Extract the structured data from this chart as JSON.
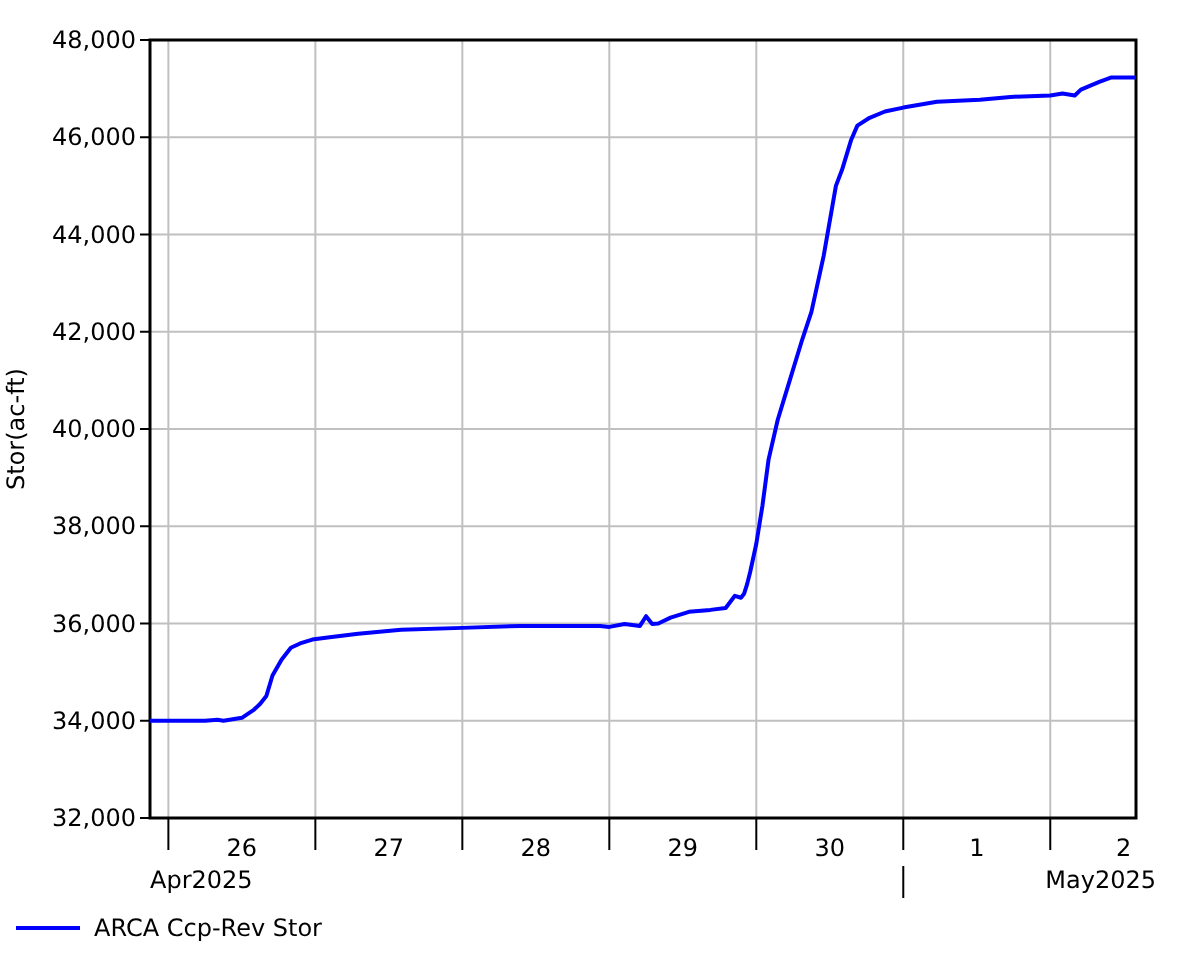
{
  "chart_data": {
    "type": "line",
    "ylabel": "Stor(ac-ft)",
    "legend": "bottom left",
    "grid": true,
    "marker": "none",
    "line_style": "solid",
    "xlim": [
      "2025-04-25T21:00",
      "2025-05-02T14:00"
    ],
    "xticks": [
      {
        "value": "2025-04-26T00:00",
        "label": null
      },
      {
        "value": "2025-04-26T12:00",
        "label": "26"
      },
      {
        "value": "2025-04-27T00:00",
        "label": null
      },
      {
        "value": "2025-04-27T12:00",
        "label": "27"
      },
      {
        "value": "2025-04-28T00:00",
        "label": null
      },
      {
        "value": "2025-04-28T12:00",
        "label": "28"
      },
      {
        "value": "2025-04-29T00:00",
        "label": null
      },
      {
        "value": "2025-04-29T12:00",
        "label": "29"
      },
      {
        "value": "2025-04-30T00:00",
        "label": null
      },
      {
        "value": "2025-04-30T12:00",
        "label": "30"
      },
      {
        "value": "2025-05-01T00:00",
        "label": null
      },
      {
        "value": "2025-05-01T12:00",
        "label": "1"
      },
      {
        "value": "2025-05-02T00:00",
        "label": null
      },
      {
        "value": "2025-05-02T12:00",
        "label": "2"
      }
    ],
    "ylim": [
      32000,
      48000
    ],
    "yticks": [
      {
        "value": 32000,
        "label": "32,000"
      },
      {
        "value": 34000,
        "label": "34,000"
      },
      {
        "value": 36000,
        "label": "36,000"
      },
      {
        "value": 38000,
        "label": "38,000"
      },
      {
        "value": 40000,
        "label": "40,000"
      },
      {
        "value": 42000,
        "label": "42,000"
      },
      {
        "value": 44000,
        "label": "44,000"
      },
      {
        "value": 46000,
        "label": "46,000"
      },
      {
        "value": 48000,
        "label": "48,000"
      }
    ],
    "annotations": [
      "Apr2025",
      "May2025"
    ],
    "x": [
      "2025-04-25T21:00",
      "2025-04-26T06:00",
      "2025-04-26T08:00",
      "2025-04-26T09:00",
      "2025-04-26T11:00",
      "2025-04-26T12:00",
      "2025-04-26T14:00",
      "2025-04-26T15:00",
      "2025-04-26T16:00",
      "2025-04-26T17:00",
      "2025-04-26T18:30",
      "2025-04-26T20:00",
      "2025-04-26T21:30",
      "2025-04-26T23:30",
      "2025-04-27T02:00",
      "2025-04-27T07:00",
      "2025-04-27T14:00",
      "2025-04-28T00:00",
      "2025-04-28T09:30",
      "2025-04-28T22:30",
      "2025-04-29T00:00",
      "2025-04-29T02:30",
      "2025-04-29T05:00",
      "2025-04-29T06:00",
      "2025-04-29T07:00",
      "2025-04-29T08:00",
      "2025-04-29T10:00",
      "2025-04-29T13:00",
      "2025-04-29T16:30",
      "2025-04-29T19:00",
      "2025-04-29T20:30",
      "2025-04-29T21:30",
      "2025-04-29T22:00",
      "2025-04-29T22:30",
      "2025-04-29T23:00",
      "2025-04-30T00:00",
      "2025-04-30T01:00",
      "2025-04-30T02:00",
      "2025-04-30T03:30",
      "2025-04-30T05:00",
      "2025-04-30T07:30",
      "2025-04-30T09:00",
      "2025-04-30T11:00",
      "2025-04-30T13:00",
      "2025-04-30T14:00",
      "2025-04-30T15:30",
      "2025-04-30T16:30",
      "2025-04-30T18:30",
      "2025-04-30T21:00",
      "2025-05-01T00:00",
      "2025-05-01T05:30",
      "2025-05-01T12:30",
      "2025-05-01T17:30",
      "2025-05-02T00:00",
      "2025-05-02T02:00",
      "2025-05-02T04:00",
      "2025-05-02T05:00",
      "2025-05-02T08:00",
      "2025-05-02T10:00",
      "2025-05-02T14:00"
    ],
    "series": [
      {
        "name": "ARCA Ccp-Rev Stor",
        "color": "#0000ff",
        "values": [
          34000,
          34000,
          34020,
          34000,
          34040,
          34060,
          34230,
          34350,
          34510,
          34930,
          35260,
          35500,
          35590,
          35670,
          35710,
          35790,
          35870,
          35910,
          35950,
          35950,
          35930,
          35990,
          35950,
          36150,
          35990,
          36000,
          36120,
          36240,
          36280,
          36320,
          36570,
          36530,
          36610,
          36810,
          37060,
          37640,
          38420,
          39370,
          40190,
          40810,
          41840,
          42410,
          43560,
          45000,
          45330,
          45950,
          46240,
          46400,
          46530,
          46610,
          46730,
          46770,
          46830,
          46860,
          46900,
          46860,
          46980,
          47140,
          47230,
          47230
        ]
      }
    ]
  }
}
